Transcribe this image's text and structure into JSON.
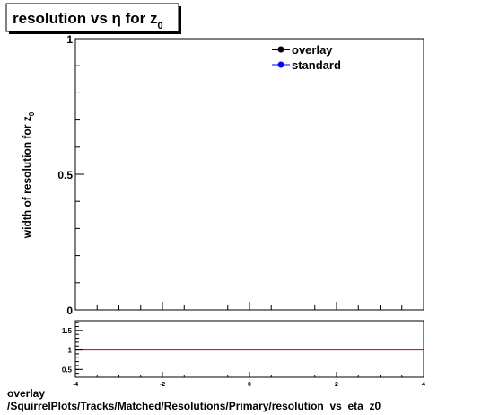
{
  "chart_data": [
    {
      "type": "line",
      "title": "resolution vs η for z",
      "title_subscript": "0",
      "ylabel": "width of resolution for z",
      "ylabel_subscript": "0",
      "xlim": [
        -4,
        4
      ],
      "ylim": [
        0,
        1
      ],
      "y_ticks": [
        "0",
        "0.5",
        "1"
      ],
      "legend": {
        "placement": "top-right",
        "entries": [
          {
            "name": "overlay",
            "color": "#000000"
          },
          {
            "name": "standard",
            "color": "#0000ff"
          }
        ]
      },
      "series": [
        {
          "name": "overlay",
          "values": []
        },
        {
          "name": "standard",
          "values": []
        }
      ]
    },
    {
      "type": "line",
      "xlim": [
        -4,
        4
      ],
      "ylim": [
        0.3,
        1.75
      ],
      "x_ticks": [
        "-4",
        "-2",
        "0",
        "2",
        "4"
      ],
      "y_ticks": [
        "0.5",
        "1",
        "1.5"
      ],
      "reference_line": {
        "y": 1,
        "color": "#cc0000"
      }
    }
  ],
  "footer": {
    "line1": "overlay",
    "line2": "/SquirrelPlots/Tracks/Matched/Resolutions/Primary/resolution_vs_eta_z0"
  }
}
